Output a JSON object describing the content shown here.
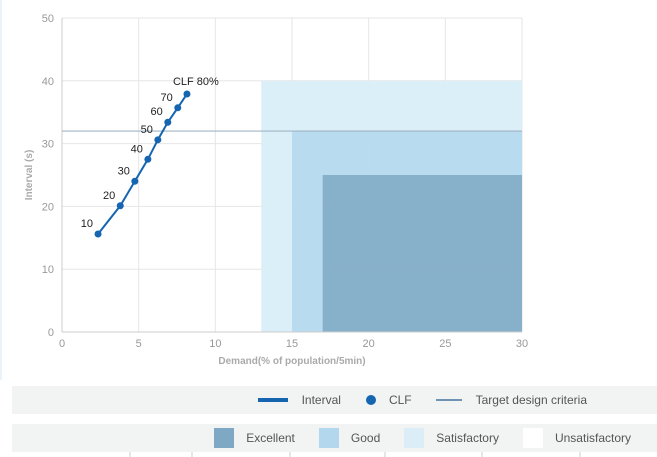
{
  "chart_data": {
    "type": "line",
    "xlabel": "Demand(% of population/5min)",
    "ylabel": "Interval (s)",
    "xlim": [
      0,
      30
    ],
    "ylim": [
      0,
      50
    ],
    "xticks": [
      0,
      5,
      10,
      15,
      20,
      25,
      30
    ],
    "yticks": [
      0,
      10,
      20,
      30,
      40,
      50
    ],
    "grid": true,
    "series": [
      {
        "name": "Interval",
        "color": "#1565b0",
        "x": [
          2.35,
          3.8,
          4.75,
          5.6,
          6.25,
          6.9,
          7.55,
          8.15
        ],
        "y": [
          15.6,
          20.1,
          24.0,
          27.5,
          30.6,
          33.4,
          35.7,
          37.9
        ],
        "labels": [
          "10",
          "20",
          "30",
          "40",
          "50",
          "60",
          "70",
          "CLF 80%"
        ]
      }
    ],
    "target_design_criteria": 32,
    "regions": [
      {
        "name": "Satisfactory",
        "x": [
          13,
          30
        ],
        "y": [
          0,
          40
        ],
        "color": "#dbeef8"
      },
      {
        "name": "Good",
        "x": [
          15,
          30
        ],
        "y": [
          0,
          32
        ],
        "color": "#b3d8ee"
      },
      {
        "name": "Excellent",
        "x": [
          17,
          30
        ],
        "y": [
          0,
          25
        ],
        "color": "#7fa8c4"
      }
    ],
    "legend1": [
      {
        "label": "Interval"
      },
      {
        "label": "CLF"
      },
      {
        "label": "Target design criteria"
      }
    ],
    "legend2": [
      {
        "label": "Excellent",
        "color": "#7fa8c4"
      },
      {
        "label": "Good",
        "color": "#b3d8ee"
      },
      {
        "label": "Satisfactory",
        "color": "#dbeef8"
      },
      {
        "label": "Unsatisfactory",
        "color": "#ffffff"
      }
    ],
    "legend_placement": "bottom"
  }
}
